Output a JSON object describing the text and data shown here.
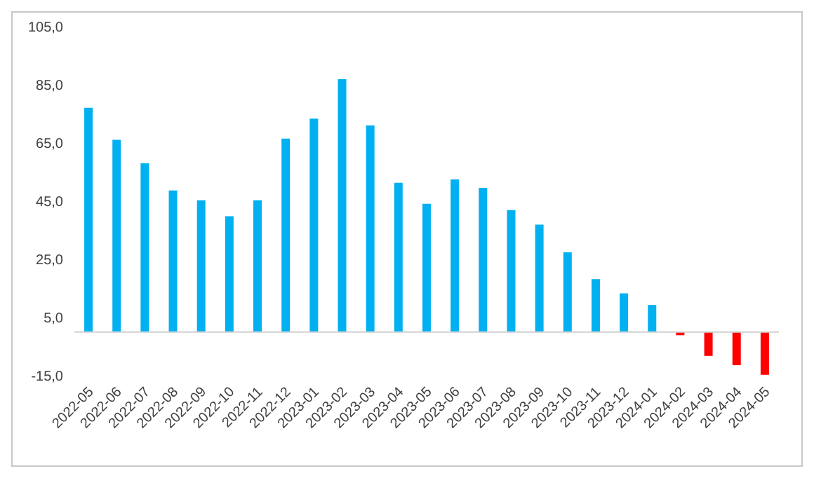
{
  "chart_data": {
    "type": "bar",
    "categories": [
      "2022-05",
      "2022-06",
      "2022-07",
      "2022-08",
      "2022-09",
      "2022-10",
      "2022-11",
      "2022-12",
      "2023-01",
      "2023-02",
      "2023-03",
      "2023-04",
      "2023-05",
      "2023-06",
      "2023-07",
      "2023-08",
      "2023-09",
      "2023-10",
      "2023-11",
      "2023-12",
      "2024-01",
      "2024-02",
      "2024-03",
      "2024-04",
      "2024-05"
    ],
    "values": [
      77.1,
      66.1,
      58.0,
      48.7,
      45.3,
      39.8,
      45.3,
      66.5,
      73.4,
      86.9,
      71.0,
      51.3,
      44.1,
      52.5,
      49.6,
      41.9,
      36.9,
      27.4,
      18.2,
      13.3,
      9.3,
      -1.1,
      -8.2,
      -11.4,
      -14.7
    ],
    "colors": [
      "#00b0f0",
      "#00b0f0",
      "#00b0f0",
      "#00b0f0",
      "#00b0f0",
      "#00b0f0",
      "#00b0f0",
      "#00b0f0",
      "#00b0f0",
      "#00b0f0",
      "#00b0f0",
      "#00b0f0",
      "#00b0f0",
      "#00b0f0",
      "#00b0f0",
      "#00b0f0",
      "#00b0f0",
      "#00b0f0",
      "#00b0f0",
      "#00b0f0",
      "#00b0f0",
      "#ff0000",
      "#ff0000",
      "#ff0000",
      "#ff0000"
    ],
    "ylim": [
      -15,
      105
    ],
    "yticks": [
      {
        "value": -15,
        "label": "-15,0"
      },
      {
        "value": 5,
        "label": "5,0"
      },
      {
        "value": 25,
        "label": "25,0"
      },
      {
        "value": 45,
        "label": "45,0"
      },
      {
        "value": 65,
        "label": "65,0"
      },
      {
        "value": 85,
        "label": "85,0"
      },
      {
        "value": 105,
        "label": "105,0"
      }
    ],
    "grid": false,
    "legend": false
  }
}
